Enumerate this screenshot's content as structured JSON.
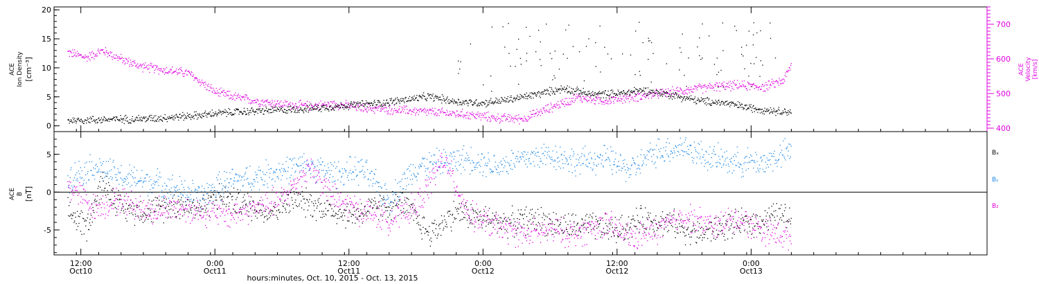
{
  "colors": {
    "black": "#000000",
    "magenta": "#e000e0",
    "blue": "#1e88e5"
  },
  "xlabel": "hours:minutes, Oct. 10, 2015 - Oct. 13, 2015",
  "chart_data": [
    {
      "type": "scatter",
      "panel": "top",
      "ylabel_left": [
        "ACE",
        "Ion Density",
        "[cm⁻³]"
      ],
      "ylabel_right": [
        "ACE",
        "Velocity",
        "[km/s]"
      ],
      "ylim_left": [
        -1,
        20.5
      ],
      "yticks_left": [
        0,
        5,
        10,
        15,
        20
      ],
      "ylim_right": [
        390,
        750
      ],
      "yticks_right": [
        400,
        500,
        600,
        700
      ],
      "xlim": [
        10.4,
        13.88
      ],
      "series": [
        {
          "axis": "left",
          "color": "black",
          "x": [
            10.45,
            10.55,
            10.65,
            10.75,
            10.85,
            10.95,
            11.0,
            11.1,
            11.2,
            11.3,
            11.4,
            11.5,
            11.6,
            11.7,
            11.8,
            11.9,
            12.0,
            12.1,
            12.2,
            12.3,
            12.4,
            12.5,
            12.6,
            12.7,
            12.8,
            12.9,
            13.0,
            13.1,
            13.15
          ],
          "y": [
            1.0,
            1.1,
            1.2,
            1.3,
            1.6,
            1.9,
            2.2,
            2.5,
            2.7,
            2.9,
            3.2,
            3.6,
            3.9,
            4.5,
            5.1,
            4.2,
            4.0,
            4.6,
            5.5,
            6.5,
            5.5,
            5.6,
            6.2,
            5.4,
            4.4,
            4.0,
            3.1,
            2.6,
            2.5
          ]
        },
        {
          "axis": "right",
          "color": "magenta",
          "x": [
            10.45,
            10.52,
            10.58,
            10.65,
            10.72,
            10.8,
            10.9,
            11.0,
            11.08,
            11.15,
            11.25,
            11.35,
            11.45,
            11.55,
            11.65,
            11.75,
            11.85,
            11.95,
            12.05,
            12.15,
            12.25,
            12.35,
            12.45,
            12.55,
            12.65,
            12.75,
            12.85,
            12.95,
            13.05,
            13.12,
            13.15
          ],
          "y": [
            620,
            605,
            625,
            600,
            580,
            570,
            560,
            505,
            490,
            480,
            470,
            465,
            470,
            460,
            455,
            450,
            445,
            440,
            430,
            428,
            460,
            490,
            480,
            490,
            500,
            510,
            520,
            525,
            520,
            540,
            585
          ]
        }
      ]
    },
    {
      "type": "scatter",
      "panel": "bottom",
      "ylabel_left": [
        "ACE",
        "B",
        "[nT]"
      ],
      "ylim": [
        -8.3,
        8
      ],
      "yticks": [
        -5,
        0,
        5
      ],
      "xlim": [
        10.4,
        13.88
      ],
      "legend": [
        "Bₓ",
        "Bᵧ",
        "B₂"
      ],
      "legend_placement": "right",
      "series": [
        {
          "name": "Bx",
          "color": "black",
          "x": [
            10.45,
            10.52,
            10.58,
            10.65,
            10.75,
            10.85,
            10.95,
            11.0,
            11.1,
            11.2,
            11.3,
            11.4,
            11.5,
            11.6,
            11.7,
            11.8,
            11.9,
            12.0,
            12.1,
            12.2,
            12.3,
            12.4,
            12.5,
            12.6,
            12.7,
            12.8,
            12.9,
            13.0,
            13.1,
            13.15
          ],
          "y": [
            -2.5,
            -4.5,
            1.5,
            -2.0,
            -2.5,
            -1.5,
            -2.0,
            -0.5,
            -1.5,
            -2.5,
            -1.0,
            -2.0,
            -3.0,
            -2.0,
            -1.5,
            -5.5,
            -2.5,
            -3.5,
            -4.0,
            -3.5,
            -4.5,
            -4.5,
            -5.0,
            -3.5,
            -4.0,
            -5.5,
            -4.5,
            -4.0,
            -3.0,
            -3.5
          ]
        },
        {
          "name": "By",
          "color": "blue",
          "x": [
            10.45,
            10.55,
            10.65,
            10.75,
            10.85,
            10.95,
            11.05,
            11.15,
            11.25,
            11.35,
            11.45,
            11.55,
            11.65,
            11.75,
            11.85,
            11.95,
            12.05,
            12.15,
            12.25,
            12.35,
            12.45,
            12.55,
            12.65,
            12.75,
            12.85,
            12.95,
            13.05,
            13.15
          ],
          "y": [
            2.0,
            3.5,
            2.0,
            1.5,
            0.5,
            -0.5,
            1.5,
            2.0,
            3.0,
            3.5,
            2.5,
            3.0,
            -1.0,
            3.5,
            4.0,
            4.5,
            3.5,
            4.5,
            5.0,
            4.0,
            4.5,
            3.0,
            5.5,
            6.0,
            4.5,
            4.0,
            4.0,
            5.5
          ]
        },
        {
          "name": "Bz",
          "color": "magenta",
          "x": [
            10.45,
            10.55,
            10.65,
            10.75,
            10.85,
            10.95,
            11.05,
            11.15,
            11.25,
            11.35,
            11.45,
            11.55,
            11.65,
            11.75,
            11.85,
            11.95,
            12.05,
            12.15,
            12.25,
            12.35,
            12.45,
            12.55,
            12.65,
            12.75,
            12.85,
            12.95,
            13.05,
            13.15
          ],
          "y": [
            1.0,
            -2.0,
            -1.0,
            -2.5,
            -2.0,
            -2.5,
            -3.0,
            -2.0,
            -1.0,
            3.5,
            -1.0,
            -2.5,
            -3.5,
            -2.0,
            4.5,
            -3.0,
            -4.5,
            -5.5,
            -5.0,
            -5.5,
            -4.0,
            -6.0,
            -5.0,
            -3.0,
            -4.5,
            -3.5,
            -5.0,
            -6.0
          ]
        }
      ]
    }
  ],
  "xaxis": {
    "ticks": [
      {
        "x": 10.5,
        "time": "12:00",
        "date": "Oct10"
      },
      {
        "x": 11.0,
        "time": "0:00",
        "date": "Oct11"
      },
      {
        "x": 11.5,
        "time": "12:00",
        "date": "Oct11"
      },
      {
        "x": 12.0,
        "time": "0:00",
        "date": "Oct12"
      },
      {
        "x": 12.5,
        "time": "12:00",
        "date": "Oct12"
      },
      {
        "x": 13.0,
        "time": "0:00",
        "date": "Oct13"
      }
    ]
  }
}
